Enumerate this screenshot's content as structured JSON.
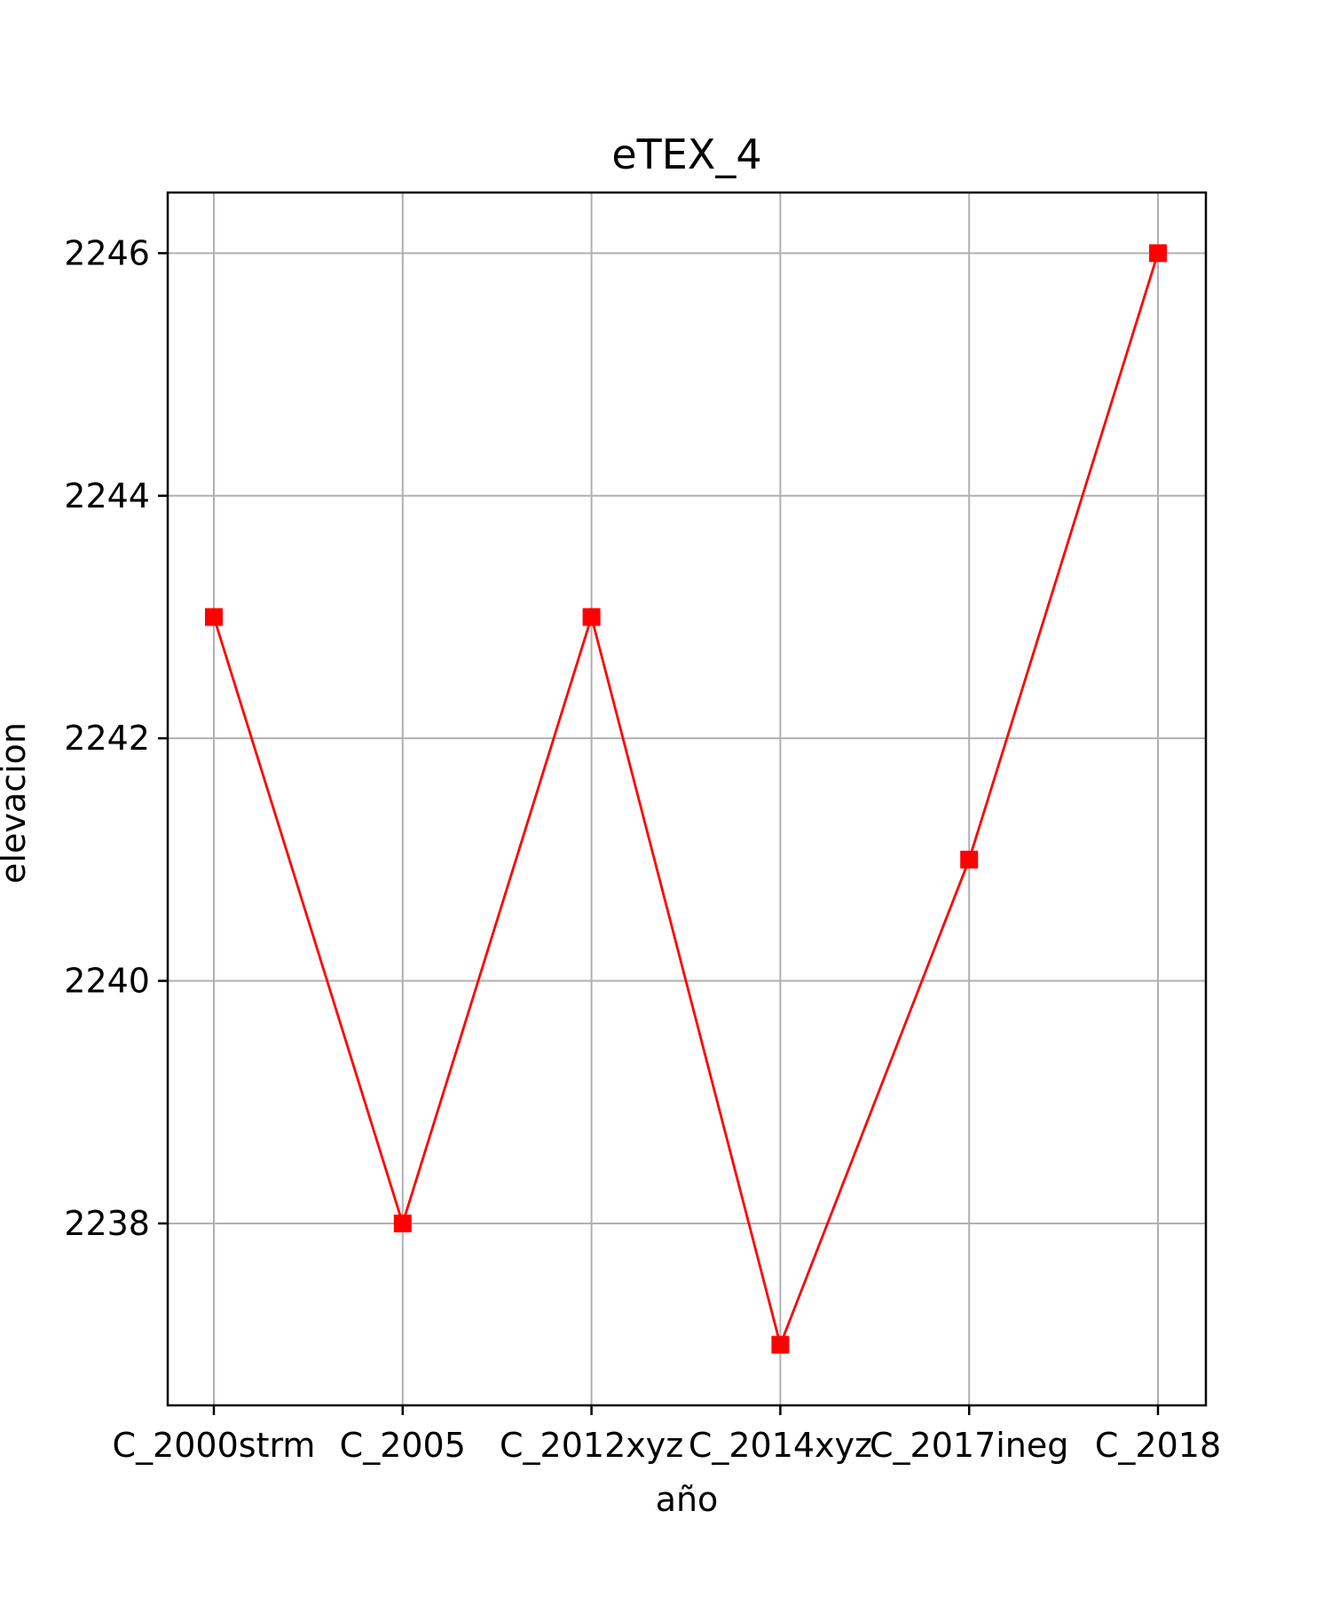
{
  "chart_data": {
    "type": "line",
    "title": "eTEX_4",
    "xlabel": "año",
    "ylabel": "elevacion",
    "categories": [
      "C_2000strm",
      "C_2005",
      "C_2012xyz",
      "C_2014xyz",
      "C_2017ineg",
      "C_2018"
    ],
    "series": [
      {
        "values": [
          2243,
          2238,
          2243,
          2237,
          2241,
          2246
        ],
        "color": "#ff0000",
        "marker": "square"
      }
    ],
    "ylim": [
      2236.5,
      2246.5
    ],
    "yticks": [
      2238,
      2240,
      2242,
      2244,
      2246
    ],
    "grid": true
  }
}
